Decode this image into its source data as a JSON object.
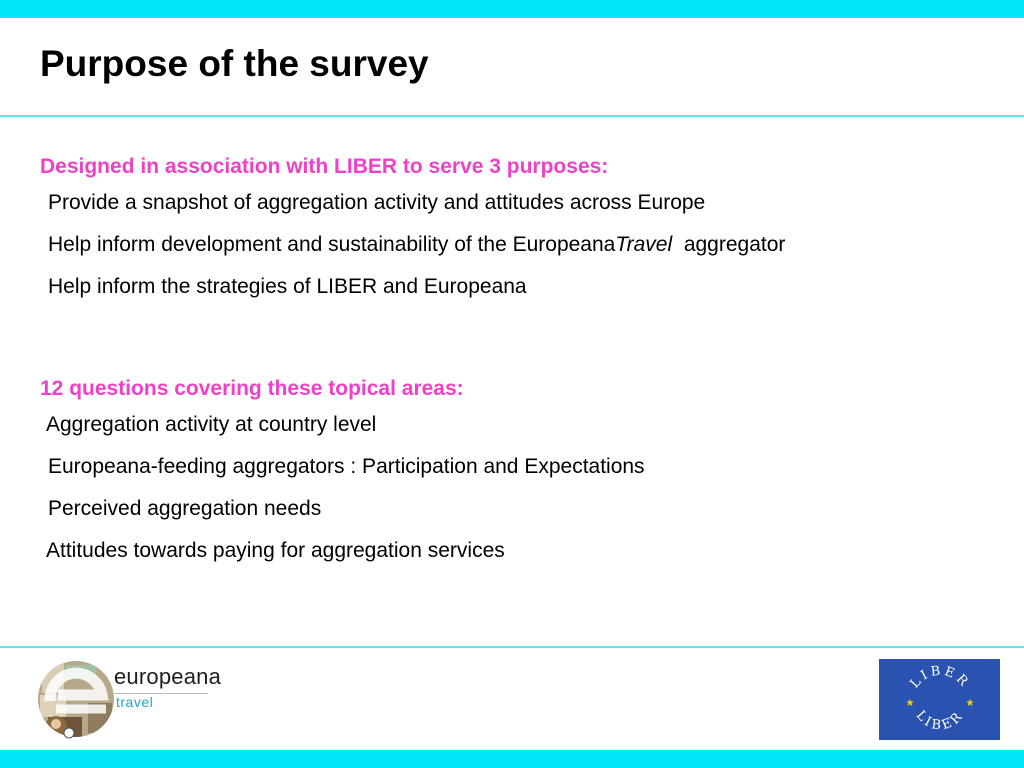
{
  "slide": {
    "title": "Purpose of the survey"
  },
  "section1": {
    "heading": "Designed in association with LIBER to serve 3 purposes:",
    "items": [
      "Provide a snapshot of aggregation activity and attitudes across Europe",
      "Help inform development and sustainability of the Europeana",
      "Help inform the strategies of LIBER and Europeana"
    ],
    "item2_italic": "Travel",
    "item2_suffix": "  aggregator"
  },
  "section2": {
    "heading": "12 questions covering these topical areas:",
    "items": [
      "Aggregation activity at country level",
      "Europeana-feeding aggregators : Participation and Expectations",
      "Perceived aggregation needs",
      "Attitudes towards paying for aggregation services"
    ]
  },
  "logos": {
    "europeana_name": "europeana",
    "europeana_sub": "travel",
    "liber_top": "LIBER",
    "liber_bottom": "LIBER"
  },
  "colors": {
    "accent_bar": "#00e8f8",
    "heading": "#f040c8",
    "liber_blue": "#2a52b0",
    "liber_star": "#f5d400"
  }
}
